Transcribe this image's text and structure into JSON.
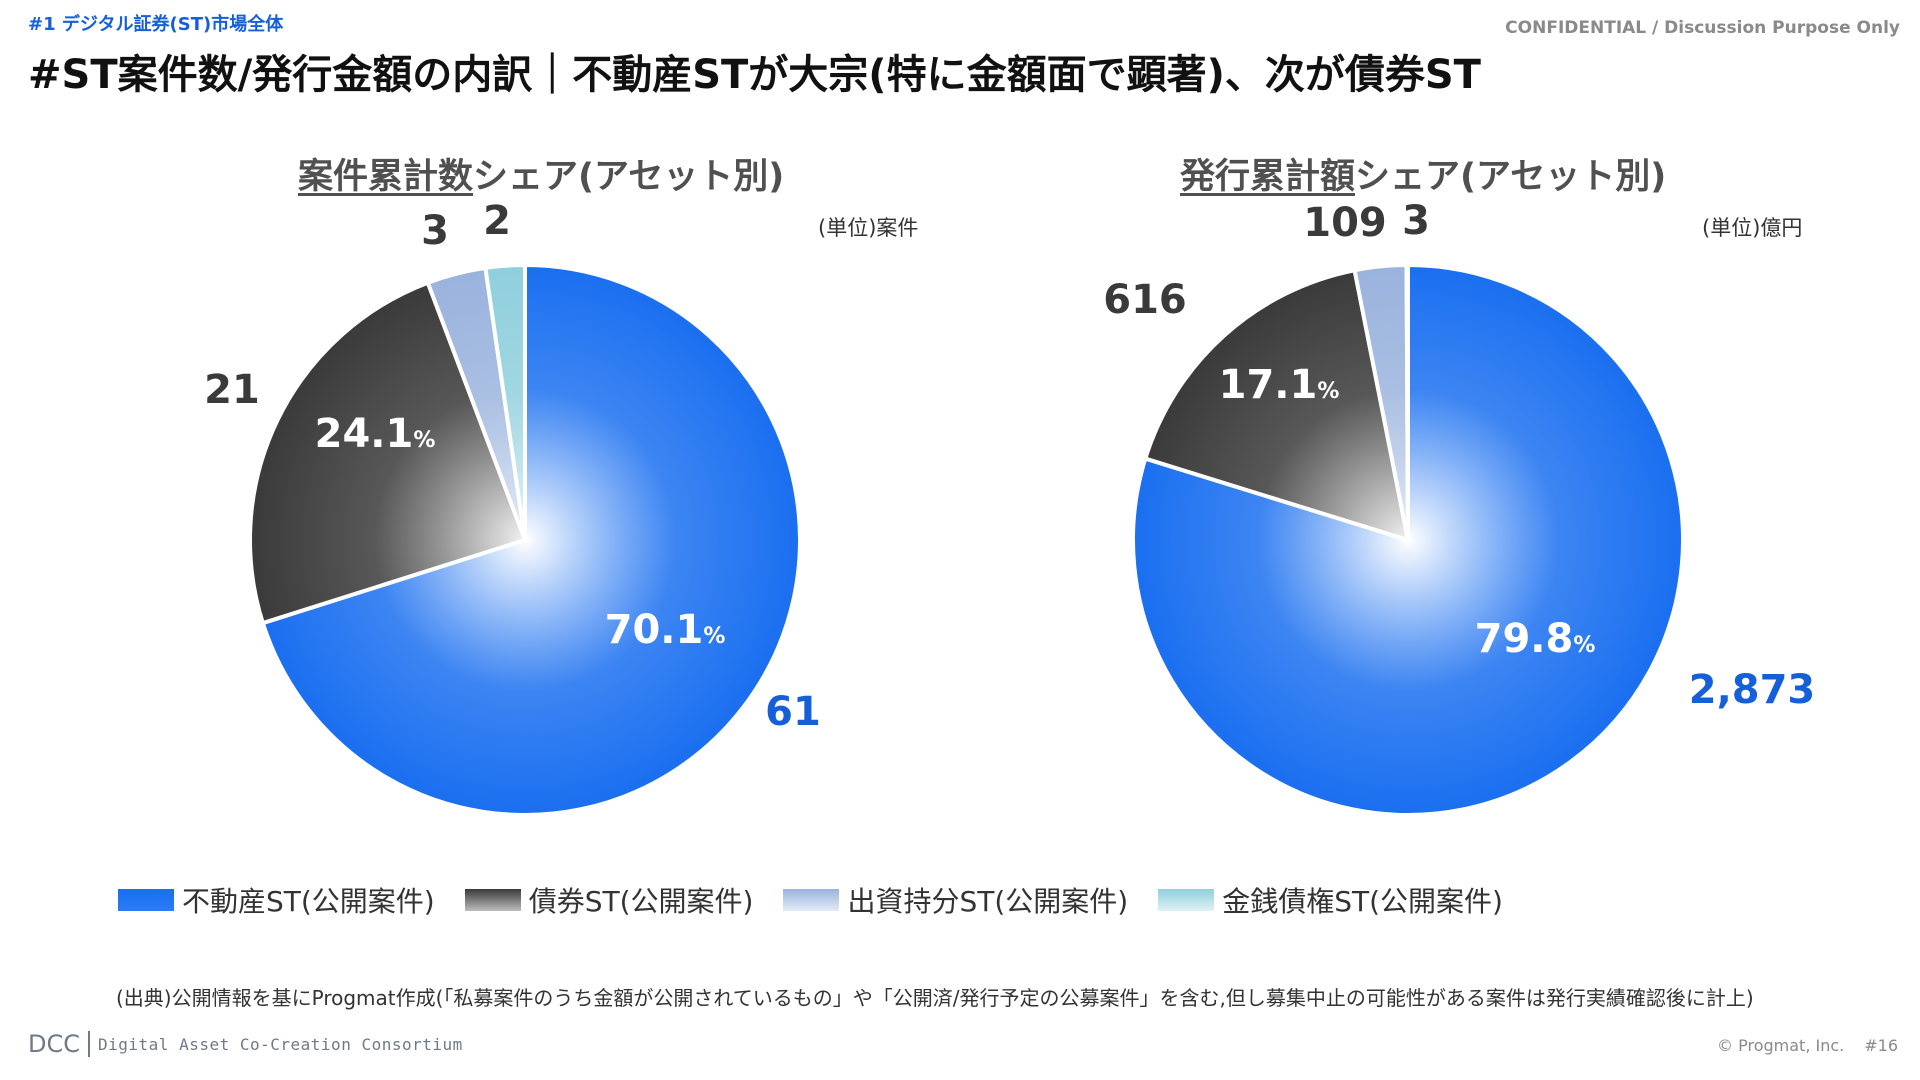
{
  "header": {
    "section_tag": "#1 デジタル証券(ST)市場全体",
    "confidential": "CONFIDENTIAL / Discussion Purpose Only",
    "title": "#ST案件数/発行金額の内訳｜不動産STが大宗(特に金額面で顕著)、次が債券ST"
  },
  "colors": {
    "real_estate": "#1a6ff0",
    "bond": "#3a3a3a",
    "equity": "#9ab3dd",
    "monetary": "#8fcfdc",
    "value_blue": "#1560d8",
    "value_dark": "#3a3a3a"
  },
  "chart_data": [
    {
      "type": "pie",
      "title_underlined": "案件累計数",
      "title_rest": "シェア(アセット別)",
      "unit": "(単位)案件",
      "categories": [
        "不動産ST(公開案件)",
        "債券ST(公開案件)",
        "出資持分ST(公開案件)",
        "金銭債権ST(公開案件)"
      ],
      "values": [
        61,
        21,
        3,
        2
      ],
      "value_labels": [
        "61",
        "21",
        "3",
        "2"
      ],
      "percent_labels": [
        "70.1",
        "24.1",
        "",
        ""
      ]
    },
    {
      "type": "pie",
      "title_underlined": "発行累計額",
      "title_rest": "シェア(アセット別)",
      "unit": "(単位)億円",
      "categories": [
        "不動産ST(公開案件)",
        "債券ST(公開案件)",
        "出資持分ST(公開案件)",
        "金銭債権ST(公開案件)"
      ],
      "values": [
        2873,
        616,
        109,
        3
      ],
      "value_labels": [
        "2,873",
        "616",
        "109",
        "3"
      ],
      "percent_labels": [
        "79.8",
        "17.1",
        "",
        ""
      ]
    }
  ],
  "legend": [
    "不動産ST(公開案件)",
    "債券ST(公開案件)",
    "出資持分ST(公開案件)",
    "金銭債権ST(公開案件)"
  ],
  "percent_sign": "%",
  "source_note": "(出典)公開情報を基にProgmat作成(「私募案件のうち金額が公開されているもの」や「公開済/発行予定の公募案件」を含む,但し募集中止の可能性がある案件は発行実績確認後に計上)",
  "footer": {
    "logo": "DCC",
    "org": "Digital Asset Co-Creation Consortium",
    "copyright": "© Progmat, Inc.",
    "page": "#16"
  }
}
